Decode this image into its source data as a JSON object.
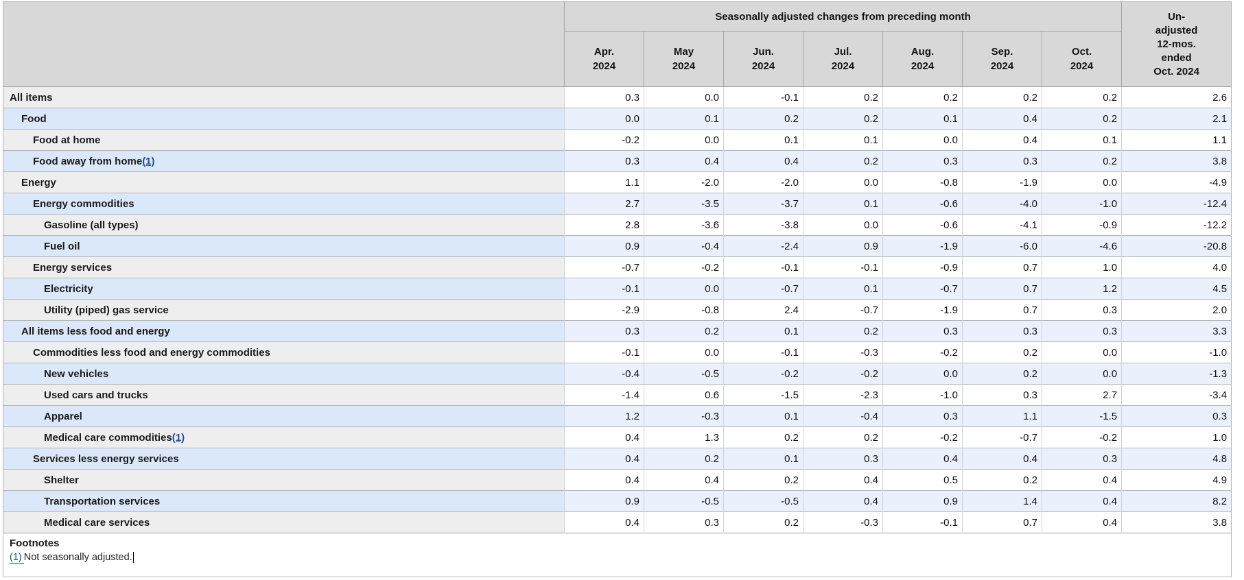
{
  "table": {
    "group_header": "Seasonally adjusted changes from preceding month",
    "month_headers": [
      "Apr.\n2024",
      "May\n2024",
      "Jun.\n2024",
      "Jul.\n2024",
      "Aug.\n2024",
      "Sep.\n2024",
      "Oct.\n2024"
    ],
    "unadjusted_header": "Un-\nadjusted\n12-mos.\nended\nOct. 2024",
    "rows": [
      {
        "label": "All items",
        "indent": 0,
        "footnote": "",
        "values": [
          "0.3",
          "0.0",
          "-0.1",
          "0.2",
          "0.2",
          "0.2",
          "0.2"
        ],
        "unadjusted_12mo": "2.6"
      },
      {
        "label": "Food",
        "indent": 1,
        "footnote": "",
        "values": [
          "0.0",
          "0.1",
          "0.2",
          "0.2",
          "0.1",
          "0.4",
          "0.2"
        ],
        "unadjusted_12mo": "2.1"
      },
      {
        "label": "Food at home",
        "indent": 2,
        "footnote": "",
        "values": [
          "-0.2",
          "0.0",
          "0.1",
          "0.1",
          "0.0",
          "0.4",
          "0.1"
        ],
        "unadjusted_12mo": "1.1"
      },
      {
        "label": "Food away from home",
        "indent": 2,
        "footnote": "(1)",
        "values": [
          "0.3",
          "0.4",
          "0.4",
          "0.2",
          "0.3",
          "0.3",
          "0.2"
        ],
        "unadjusted_12mo": "3.8"
      },
      {
        "label": "Energy",
        "indent": 1,
        "footnote": "",
        "values": [
          "1.1",
          "-2.0",
          "-2.0",
          "0.0",
          "-0.8",
          "-1.9",
          "0.0"
        ],
        "unadjusted_12mo": "-4.9"
      },
      {
        "label": "Energy commodities",
        "indent": 2,
        "footnote": "",
        "values": [
          "2.7",
          "-3.5",
          "-3.7",
          "0.1",
          "-0.6",
          "-4.0",
          "-1.0"
        ],
        "unadjusted_12mo": "-12.4"
      },
      {
        "label": "Gasoline (all types)",
        "indent": 3,
        "footnote": "",
        "values": [
          "2.8",
          "-3.6",
          "-3.8",
          "0.0",
          "-0.6",
          "-4.1",
          "-0.9"
        ],
        "unadjusted_12mo": "-12.2"
      },
      {
        "label": "Fuel oil",
        "indent": 3,
        "footnote": "",
        "values": [
          "0.9",
          "-0.4",
          "-2.4",
          "0.9",
          "-1.9",
          "-6.0",
          "-4.6"
        ],
        "unadjusted_12mo": "-20.8"
      },
      {
        "label": "Energy services",
        "indent": 2,
        "footnote": "",
        "values": [
          "-0.7",
          "-0.2",
          "-0.1",
          "-0.1",
          "-0.9",
          "0.7",
          "1.0"
        ],
        "unadjusted_12mo": "4.0"
      },
      {
        "label": "Electricity",
        "indent": 3,
        "footnote": "",
        "values": [
          "-0.1",
          "0.0",
          "-0.7",
          "0.1",
          "-0.7",
          "0.7",
          "1.2"
        ],
        "unadjusted_12mo": "4.5"
      },
      {
        "label": "Utility (piped) gas service",
        "indent": 3,
        "footnote": "",
        "values": [
          "-2.9",
          "-0.8",
          "2.4",
          "-0.7",
          "-1.9",
          "0.7",
          "0.3"
        ],
        "unadjusted_12mo": "2.0"
      },
      {
        "label": "All items less food and energy",
        "indent": 1,
        "footnote": "",
        "values": [
          "0.3",
          "0.2",
          "0.1",
          "0.2",
          "0.3",
          "0.3",
          "0.3"
        ],
        "unadjusted_12mo": "3.3"
      },
      {
        "label": "Commodities less food and energy commodities",
        "indent": 2,
        "footnote": "",
        "values": [
          "-0.1",
          "0.0",
          "-0.1",
          "-0.3",
          "-0.2",
          "0.2",
          "0.0"
        ],
        "unadjusted_12mo": "-1.0"
      },
      {
        "label": "New vehicles",
        "indent": 3,
        "footnote": "",
        "values": [
          "-0.4",
          "-0.5",
          "-0.2",
          "-0.2",
          "0.0",
          "0.2",
          "0.0"
        ],
        "unadjusted_12mo": "-1.3"
      },
      {
        "label": "Used cars and trucks",
        "indent": 3,
        "footnote": "",
        "values": [
          "-1.4",
          "0.6",
          "-1.5",
          "-2.3",
          "-1.0",
          "0.3",
          "2.7"
        ],
        "unadjusted_12mo": "-3.4"
      },
      {
        "label": "Apparel",
        "indent": 3,
        "footnote": "",
        "values": [
          "1.2",
          "-0.3",
          "0.1",
          "-0.4",
          "0.3",
          "1.1",
          "-1.5"
        ],
        "unadjusted_12mo": "0.3"
      },
      {
        "label": "Medical care commodities",
        "indent": 3,
        "footnote": "(1)",
        "values": [
          "0.4",
          "1.3",
          "0.2",
          "0.2",
          "-0.2",
          "-0.7",
          "-0.2"
        ],
        "unadjusted_12mo": "1.0"
      },
      {
        "label": "Services less energy services",
        "indent": 2,
        "footnote": "",
        "values": [
          "0.4",
          "0.2",
          "0.1",
          "0.3",
          "0.4",
          "0.4",
          "0.3"
        ],
        "unadjusted_12mo": "4.8"
      },
      {
        "label": "Shelter",
        "indent": 3,
        "footnote": "",
        "values": [
          "0.4",
          "0.4",
          "0.2",
          "0.4",
          "0.5",
          "0.2",
          "0.4"
        ],
        "unadjusted_12mo": "4.9"
      },
      {
        "label": "Transportation services",
        "indent": 3,
        "footnote": "",
        "values": [
          "0.9",
          "-0.5",
          "-0.5",
          "0.4",
          "0.9",
          "1.4",
          "0.4"
        ],
        "unadjusted_12mo": "8.2"
      },
      {
        "label": "Medical care services",
        "indent": 3,
        "footnote": "",
        "values": [
          "0.4",
          "0.3",
          "0.2",
          "-0.3",
          "-0.1",
          "0.7",
          "0.4"
        ],
        "unadjusted_12mo": "3.8"
      }
    ]
  },
  "footnotes": {
    "heading": "Footnotes",
    "items": [
      {
        "ref": "(1)",
        "text": "Not seasonally adjusted."
      }
    ]
  },
  "colors": {
    "header_bg": "#d8d8d8",
    "header_border": "#a6a6a6",
    "head_body_sep": "#9d9d9d",
    "outer_border": "#b2b2b2",
    "row_border": "#b3b7bc",
    "cell_border": "#ccd3dc",
    "gray_row_label_bg": "#efeeee",
    "gray_row_cell_bg": "#ffffff",
    "blue_row_label_bg": "#dbe8fa",
    "blue_row_cell_bg": "#ebf1fc",
    "label_text": "#1b1b1b",
    "value_text": "#101010",
    "link_blue": "#1f4ea1"
  }
}
